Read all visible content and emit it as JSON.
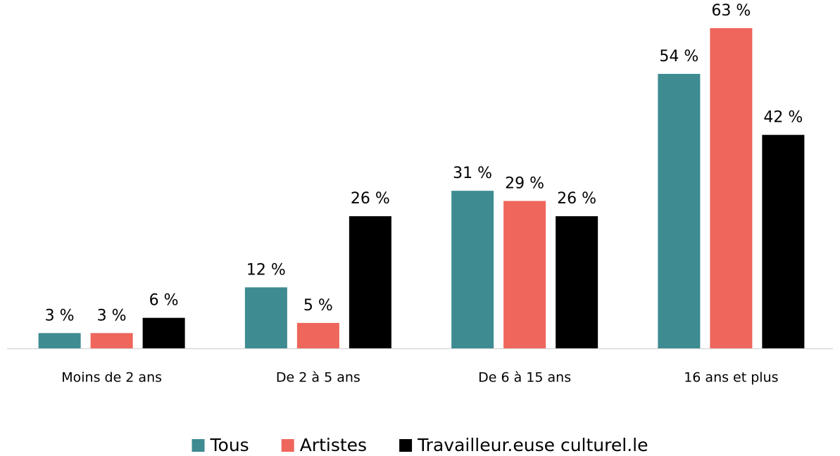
{
  "chart_data": {
    "type": "bar",
    "categories": [
      "Moins de 2 ans",
      "De 2 à 5 ans",
      "De 6 à 15 ans",
      "16 ans et plus"
    ],
    "series": [
      {
        "name": "Tous",
        "color": "#3e8b92",
        "values": [
          3,
          12,
          31,
          54
        ],
        "value_labels": [
          "3 %",
          "12 %",
          "31 %",
          "54 %"
        ]
      },
      {
        "name": "Artistes",
        "color": "#ee665c",
        "values": [
          3,
          5,
          29,
          63
        ],
        "value_labels": [
          "3 %",
          "5 %",
          "29 %",
          "63 %"
        ]
      },
      {
        "name": "Travailleur.euse culturel.le",
        "color": "#000000",
        "values": [
          6,
          26,
          26,
          42
        ],
        "value_labels": [
          "6 %",
          "26 %",
          "26 %",
          "42 %"
        ]
      }
    ],
    "legend": "bottom"
  }
}
